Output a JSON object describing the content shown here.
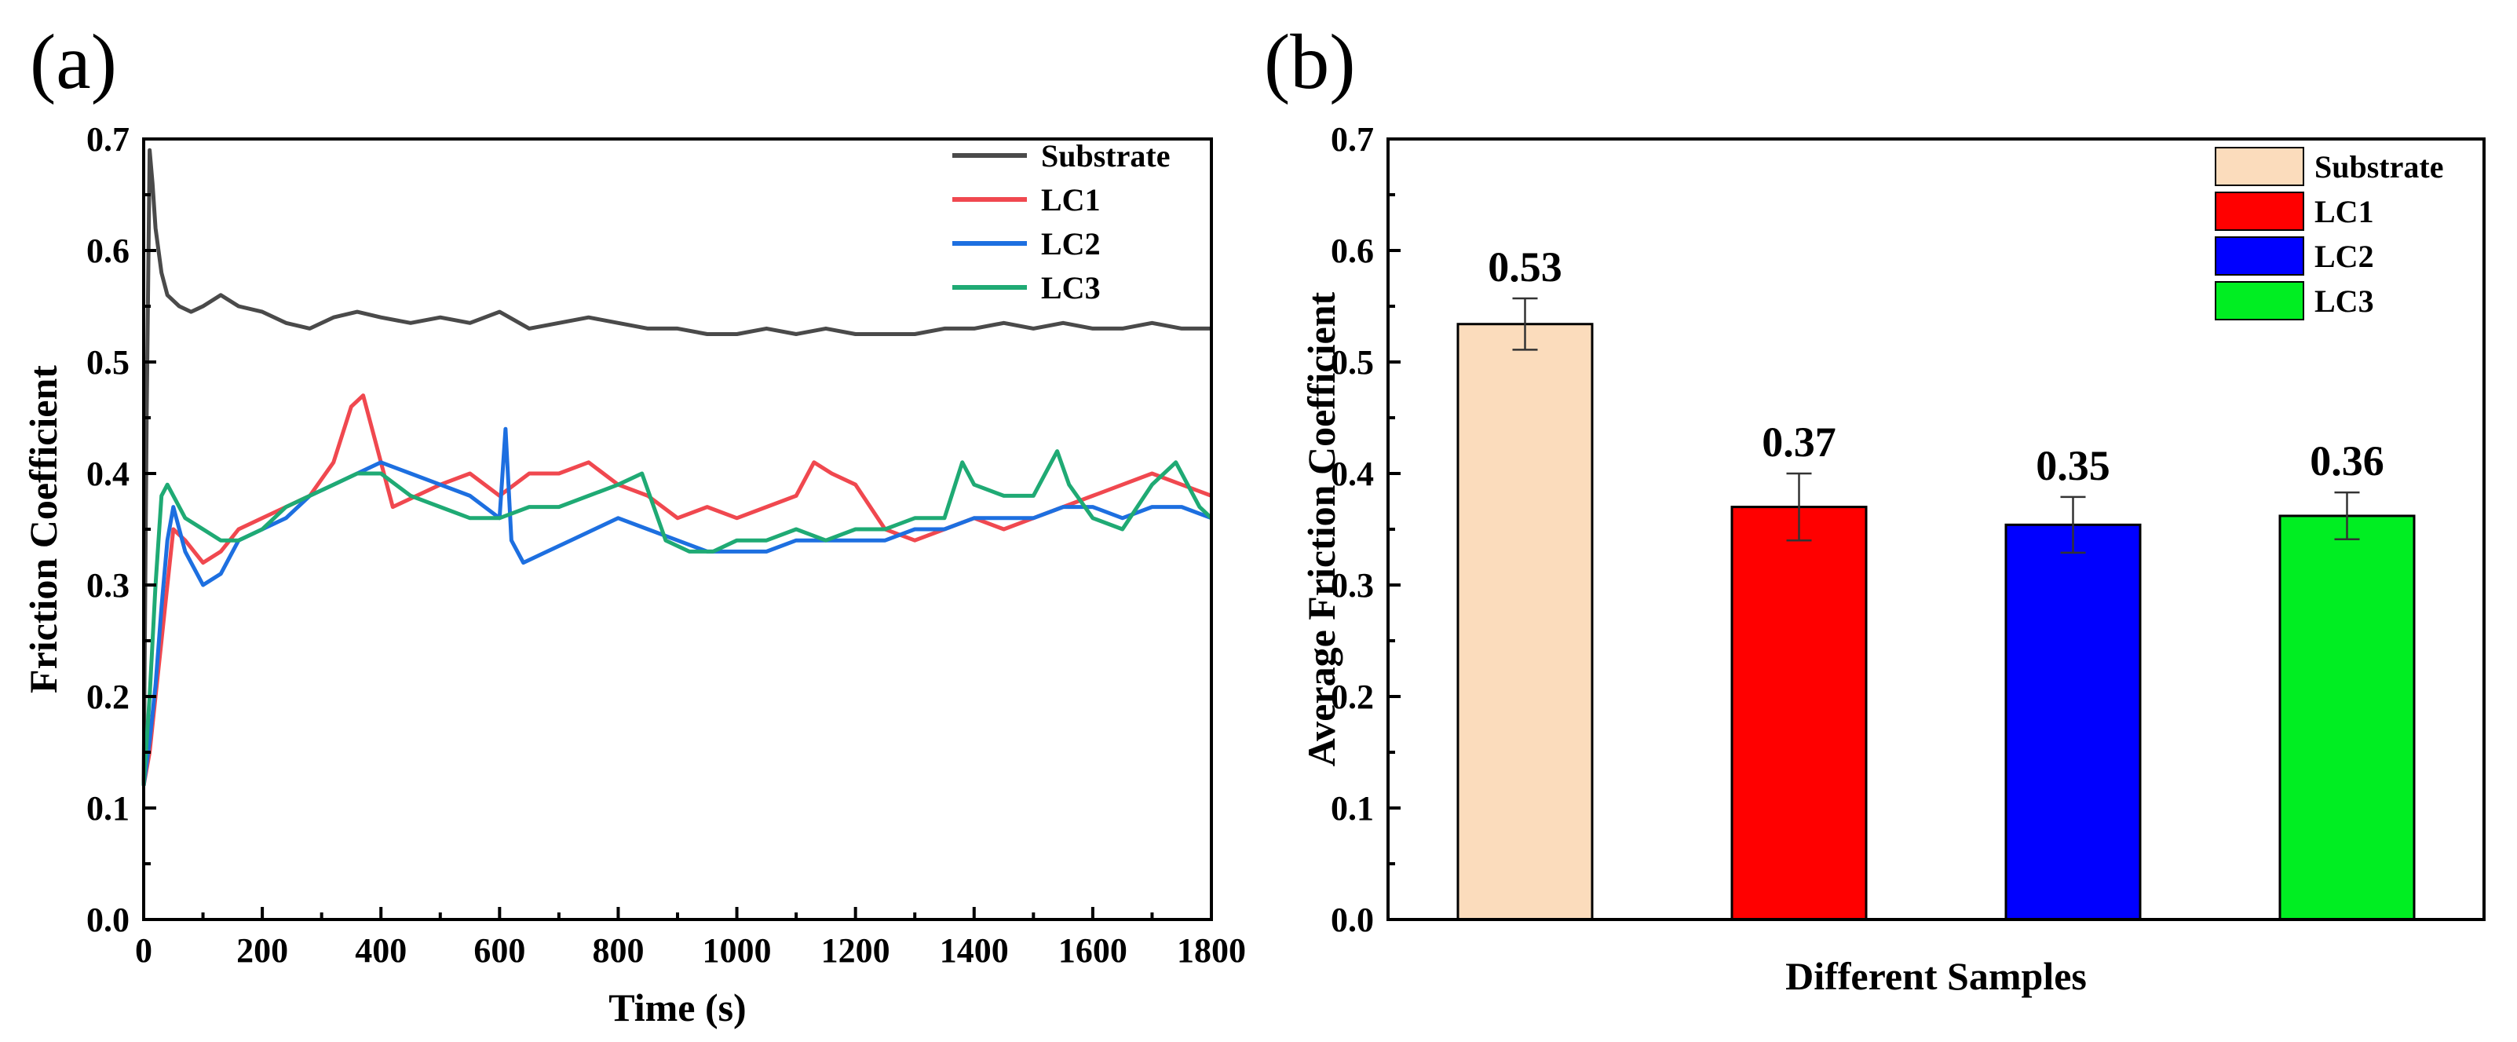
{
  "panels": {
    "a": "(a)",
    "b": "(b)"
  },
  "chart_data": [
    {
      "type": "line",
      "xlabel": "Time (s)",
      "ylabel": "Friction Coefficient",
      "xlim": [
        0,
        1800
      ],
      "ylim": [
        0,
        0.7
      ],
      "xticks": [
        0,
        200,
        400,
        600,
        800,
        1000,
        1200,
        1400,
        1600,
        1800
      ],
      "yticks": [
        0.0,
        0.1,
        0.2,
        0.3,
        0.4,
        0.5,
        0.6,
        0.7
      ],
      "ytick_labels": [
        "0.0",
        "0.1",
        "0.2",
        "0.3",
        "0.4",
        "0.5",
        "0.6",
        "0.7"
      ],
      "legend_position": "top-right",
      "grid": false,
      "series": [
        {
          "name": "Substrate",
          "color": "#4a4a4a",
          "x": [
            0,
            5,
            10,
            15,
            20,
            30,
            40,
            60,
            80,
            100,
            130,
            160,
            200,
            240,
            280,
            320,
            360,
            400,
            450,
            500,
            550,
            600,
            650,
            700,
            750,
            800,
            850,
            900,
            950,
            1000,
            1050,
            1100,
            1150,
            1200,
            1250,
            1300,
            1350,
            1400,
            1450,
            1500,
            1550,
            1600,
            1650,
            1700,
            1750,
            1800
          ],
          "y": [
            0.12,
            0.45,
            0.69,
            0.66,
            0.62,
            0.58,
            0.56,
            0.55,
            0.545,
            0.55,
            0.56,
            0.55,
            0.545,
            0.535,
            0.53,
            0.54,
            0.545,
            0.54,
            0.535,
            0.54,
            0.535,
            0.545,
            0.53,
            0.535,
            0.54,
            0.535,
            0.53,
            0.53,
            0.525,
            0.525,
            0.53,
            0.525,
            0.53,
            0.525,
            0.525,
            0.525,
            0.53,
            0.53,
            0.535,
            0.53,
            0.535,
            0.53,
            0.53,
            0.535,
            0.53,
            0.53
          ]
        },
        {
          "name": "LC1",
          "color": "#f0484f",
          "x": [
            0,
            10,
            20,
            30,
            40,
            50,
            70,
            100,
            130,
            160,
            200,
            240,
            280,
            320,
            350,
            370,
            390,
            420,
            460,
            500,
            550,
            600,
            650,
            700,
            750,
            800,
            850,
            900,
            950,
            1000,
            1050,
            1100,
            1130,
            1160,
            1200,
            1250,
            1300,
            1350,
            1400,
            1450,
            1500,
            1550,
            1600,
            1650,
            1700,
            1750,
            1800
          ],
          "y": [
            0.12,
            0.15,
            0.2,
            0.25,
            0.3,
            0.35,
            0.34,
            0.32,
            0.33,
            0.35,
            0.36,
            0.37,
            0.38,
            0.41,
            0.46,
            0.47,
            0.43,
            0.37,
            0.38,
            0.39,
            0.4,
            0.38,
            0.4,
            0.4,
            0.41,
            0.39,
            0.38,
            0.36,
            0.37,
            0.36,
            0.37,
            0.38,
            0.41,
            0.4,
            0.39,
            0.35,
            0.34,
            0.35,
            0.36,
            0.35,
            0.36,
            0.37,
            0.38,
            0.39,
            0.4,
            0.39,
            0.38
          ]
        },
        {
          "name": "LC2",
          "color": "#1d6fe0",
          "x": [
            0,
            10,
            20,
            30,
            40,
            50,
            70,
            100,
            130,
            160,
            200,
            240,
            280,
            320,
            360,
            400,
            450,
            500,
            550,
            600,
            610,
            620,
            640,
            680,
            720,
            760,
            800,
            850,
            900,
            950,
            1000,
            1050,
            1100,
            1150,
            1200,
            1250,
            1300,
            1350,
            1400,
            1450,
            1500,
            1550,
            1600,
            1650,
            1700,
            1750,
            1800
          ],
          "y": [
            0.12,
            0.16,
            0.21,
            0.28,
            0.34,
            0.37,
            0.33,
            0.3,
            0.31,
            0.34,
            0.35,
            0.36,
            0.38,
            0.39,
            0.4,
            0.41,
            0.4,
            0.39,
            0.38,
            0.36,
            0.44,
            0.34,
            0.32,
            0.33,
            0.34,
            0.35,
            0.36,
            0.35,
            0.34,
            0.33,
            0.33,
            0.33,
            0.34,
            0.34,
            0.34,
            0.34,
            0.35,
            0.35,
            0.36,
            0.36,
            0.36,
            0.37,
            0.37,
            0.36,
            0.37,
            0.37,
            0.36
          ]
        },
        {
          "name": "LC3",
          "color": "#1faa74",
          "x": [
            0,
            10,
            20,
            30,
            40,
            50,
            70,
            100,
            130,
            160,
            200,
            240,
            280,
            320,
            360,
            400,
            450,
            500,
            550,
            600,
            650,
            700,
            750,
            800,
            840,
            880,
            920,
            960,
            1000,
            1050,
            1100,
            1150,
            1200,
            1250,
            1300,
            1350,
            1380,
            1400,
            1450,
            1500,
            1540,
            1560,
            1600,
            1650,
            1700,
            1740,
            1780,
            1800
          ],
          "y": [
            0.12,
            0.2,
            0.3,
            0.38,
            0.39,
            0.38,
            0.36,
            0.35,
            0.34,
            0.34,
            0.35,
            0.37,
            0.38,
            0.39,
            0.4,
            0.4,
            0.38,
            0.37,
            0.36,
            0.36,
            0.37,
            0.37,
            0.38,
            0.39,
            0.4,
            0.34,
            0.33,
            0.33,
            0.34,
            0.34,
            0.35,
            0.34,
            0.35,
            0.35,
            0.36,
            0.36,
            0.41,
            0.39,
            0.38,
            0.38,
            0.42,
            0.39,
            0.36,
            0.35,
            0.39,
            0.41,
            0.37,
            0.36
          ]
        }
      ]
    },
    {
      "type": "bar",
      "xlabel": "Different Samples",
      "ylabel": "Average Friction Coefficient",
      "ylim": [
        0,
        0.7
      ],
      "yticks": [
        0.0,
        0.1,
        0.2,
        0.3,
        0.4,
        0.5,
        0.6,
        0.7
      ],
      "ytick_labels": [
        "0.0",
        "0.1",
        "0.2",
        "0.3",
        "0.4",
        "0.5",
        "0.6",
        "0.7"
      ],
      "legend_position": "top-right",
      "grid": false,
      "categories": [
        "Substrate",
        "LC1",
        "LC2",
        "LC3"
      ],
      "values": [
        0.534,
        0.37,
        0.354,
        0.362
      ],
      "errors": [
        0.023,
        0.03,
        0.025,
        0.021
      ],
      "value_labels": [
        "0.53",
        "0.37",
        "0.35",
        "0.36"
      ],
      "colors": [
        "#fbdcbc",
        "#ff0000",
        "#0000ff",
        "#00ee22"
      ]
    }
  ]
}
